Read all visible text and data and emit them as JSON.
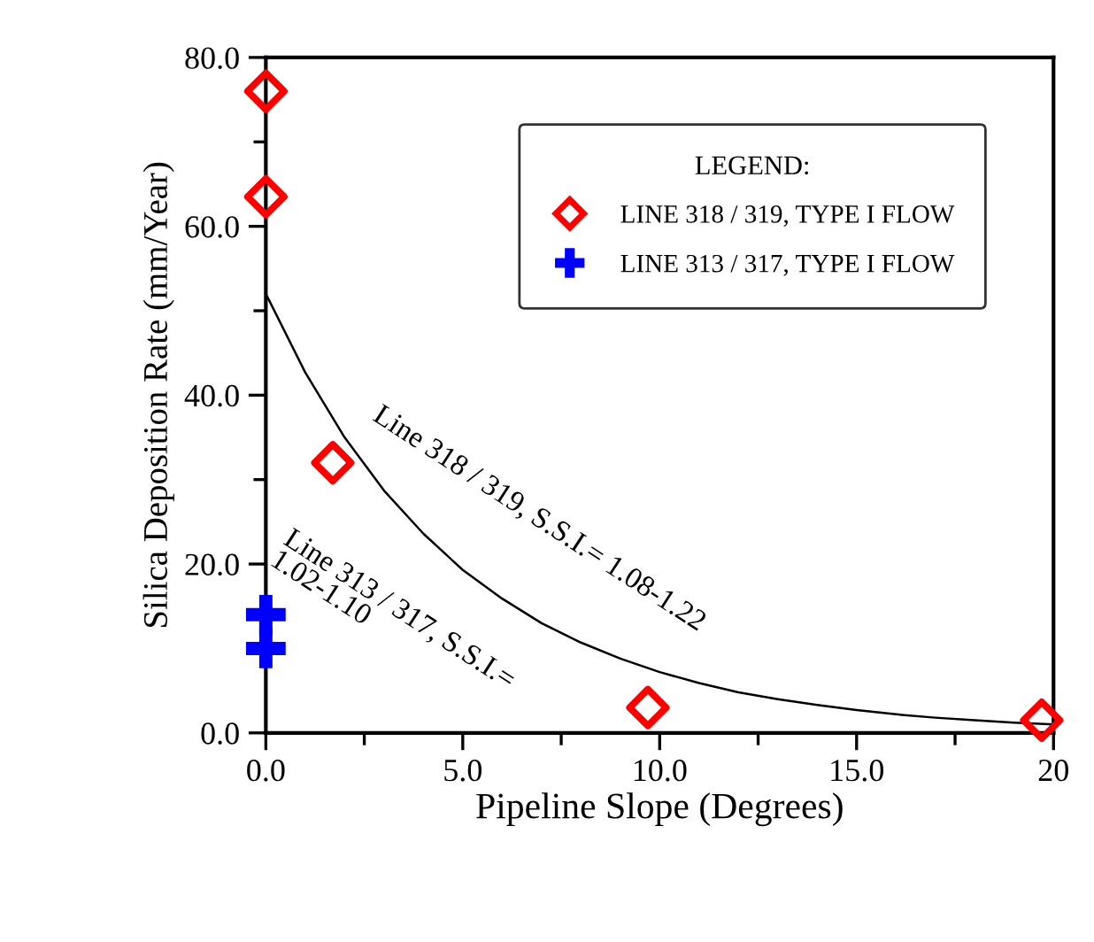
{
  "chart_data": {
    "type": "scatter",
    "xlabel": "Pipeline Slope (Degrees)",
    "ylabel": "Silica Deposition Rate (mm/Year)",
    "legend_title": "LEGEND:",
    "series": [
      {
        "name": "LINE 318 / 319, TYPE I FLOW",
        "color": "#ff0000",
        "marker": "diamond",
        "x": [
          0,
          0,
          1.7,
          9.7,
          19.7
        ],
        "values": [
          76,
          63.5,
          32,
          3,
          1.5
        ]
      },
      {
        "name": "LINE 313 / 317, TYPE I FLOW",
        "color": "#0000ff",
        "marker": "cross",
        "x": [
          0,
          0
        ],
        "values": [
          14,
          10
        ]
      },
      {
        "type": "line",
        "color": "#000000",
        "marker": "none",
        "x": [
          0,
          1,
          2,
          3,
          4,
          5,
          6,
          7,
          8,
          9,
          10,
          11,
          12,
          13,
          14,
          15,
          16,
          17,
          18,
          19,
          20
        ],
        "values": [
          52,
          42.7,
          35,
          28.7,
          23.6,
          19.3,
          15.9,
          13.0,
          10.7,
          8.8,
          7.2,
          5.9,
          4.8,
          4.0,
          3.3,
          2.7,
          2.2,
          1.8,
          1.5,
          1.2,
          1.0
        ]
      }
    ],
    "annotations": [
      "Line 318 / 319, S.S.I.= 1.08-1.22",
      "Line 313 / 317, S.S.I.=\n1.02-1.10"
    ],
    "xlim": [
      0,
      20
    ],
    "ylim": [
      0,
      80
    ],
    "xticks": [
      {
        "value": 0,
        "label": "0.0"
      },
      {
        "value": 5,
        "label": "5.0"
      },
      {
        "value": 10,
        "label": "10.0"
      },
      {
        "value": 15,
        "label": "15.0"
      },
      20
    ],
    "yticks": [
      {
        "value": 0,
        "label": "0.0"
      },
      {
        "value": 20,
        "label": "20.0"
      },
      {
        "value": 40,
        "label": "40.0"
      },
      {
        "value": 60,
        "label": "60.0"
      },
      {
        "value": 80,
        "label": "80.0"
      }
    ],
    "legend": "top right",
    "grid": false
  }
}
